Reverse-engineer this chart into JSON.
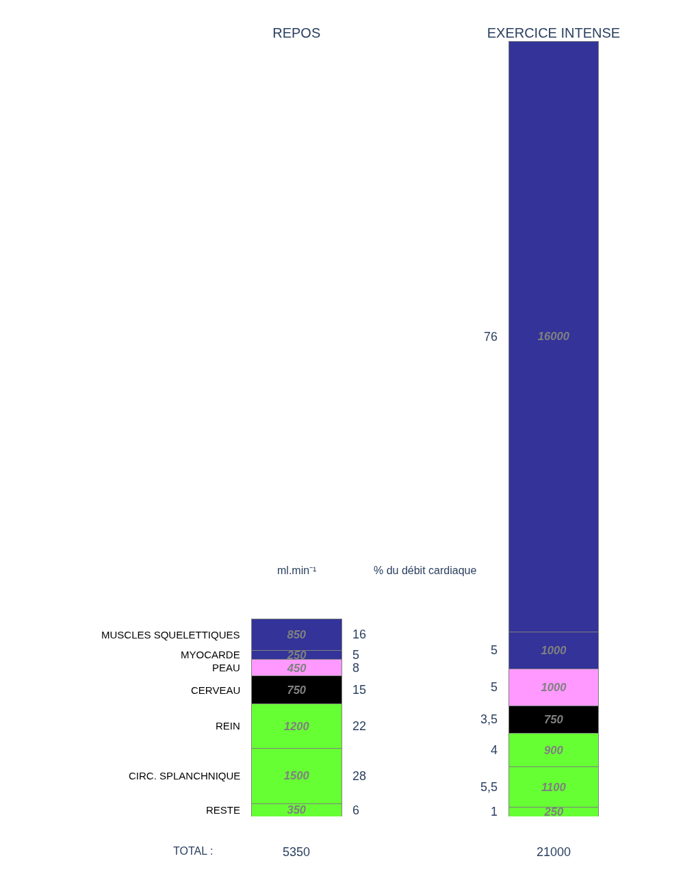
{
  "chart_data": {
    "type": "bar",
    "stacked": true,
    "categories": [
      "REPOS",
      "EXERCICE INTENSE"
    ],
    "series": [
      {
        "name": "RESTE",
        "color": "#66ff33",
        "values": [
          350,
          250
        ]
      },
      {
        "name": "CIRC. SPLANCHNIQUE",
        "color": "#66ff33",
        "values": [
          1500,
          1100
        ]
      },
      {
        "name": "REIN",
        "color": "#66ff33",
        "values": [
          1200,
          900
        ]
      },
      {
        "name": "CERVEAU",
        "color": "#000000",
        "values": [
          750,
          750
        ]
      },
      {
        "name": "PEAU",
        "color": "#ff99ff",
        "values": [
          450,
          1000
        ]
      },
      {
        "name": "MYOCARDE",
        "color": "#333399",
        "values": [
          250,
          1000
        ]
      },
      {
        "name": "MUSCLES SQUELETTIQUES",
        "color": "#333399",
        "values": [
          850,
          16000
        ]
      }
    ],
    "data_labels": true,
    "totals": [
      "5350",
      "21000"
    ],
    "legend": false,
    "annotations": [
      "ml.min⁻¹",
      "% du débit cardiaque",
      "TOTAL :",
      "6",
      "28",
      "22",
      "15",
      "8",
      "5",
      "16",
      "1",
      "5,5",
      "4",
      "3,5",
      "5",
      "5",
      "76"
    ]
  }
}
